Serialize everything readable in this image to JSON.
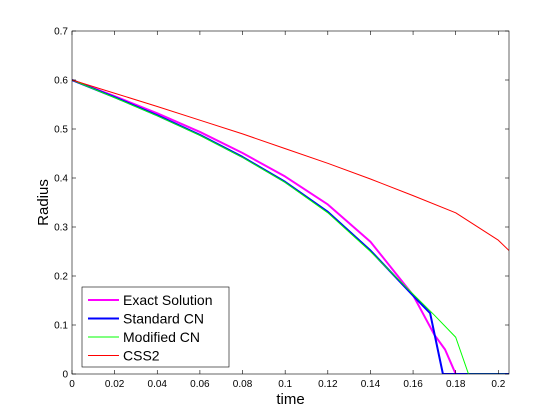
{
  "chart_data": {
    "type": "line",
    "title": "",
    "xlabel": "time",
    "ylabel": "Radius",
    "xlim": [
      0,
      0.205
    ],
    "ylim": [
      0,
      0.7
    ],
    "xticks": [
      0,
      0.02,
      0.04,
      0.06,
      0.08,
      0.1,
      0.12,
      0.14,
      0.16,
      0.18,
      0.2
    ],
    "yticks": [
      0,
      0.1,
      0.2,
      0.3,
      0.4,
      0.5,
      0.6,
      0.7
    ],
    "grid": false,
    "legend_position": "bottom-left",
    "series": [
      {
        "name": "Exact Solution",
        "color": "#ff00ff",
        "width": 2,
        "x": [
          0,
          0.02,
          0.04,
          0.06,
          0.08,
          0.1,
          0.12,
          0.14,
          0.16,
          0.17,
          0.175,
          0.178,
          0.18,
          0.205
        ],
        "y": [
          0.6,
          0.567,
          0.532,
          0.494,
          0.451,
          0.403,
          0.346,
          0.27,
          0.161,
          0.08,
          0.05,
          0.02,
          0.0,
          0.0
        ]
      },
      {
        "name": "Standard CN",
        "color": "#0000ff",
        "width": 2,
        "x": [
          0,
          0.02,
          0.04,
          0.06,
          0.08,
          0.1,
          0.12,
          0.14,
          0.16,
          0.168,
          0.174,
          0.205
        ],
        "y": [
          0.6,
          0.565,
          0.528,
          0.488,
          0.443,
          0.392,
          0.331,
          0.252,
          0.16,
          0.124,
          0.0,
          0.0
        ]
      },
      {
        "name": "Modified CN",
        "color": "#00ff00",
        "width": 1,
        "x": [
          0,
          0.02,
          0.04,
          0.06,
          0.08,
          0.1,
          0.12,
          0.14,
          0.16,
          0.17,
          0.18,
          0.186,
          0.205
        ],
        "y": [
          0.6,
          0.564,
          0.527,
          0.487,
          0.442,
          0.391,
          0.329,
          0.25,
          0.163,
          0.12,
          0.075,
          0.0,
          0.0
        ]
      },
      {
        "name": "CSS2",
        "color": "#ff0000",
        "width": 1,
        "x": [
          0,
          0.02,
          0.04,
          0.06,
          0.08,
          0.1,
          0.12,
          0.14,
          0.16,
          0.18,
          0.2,
          0.205
        ],
        "y": [
          0.6,
          0.573,
          0.546,
          0.518,
          0.49,
          0.46,
          0.43,
          0.398,
          0.364,
          0.329,
          0.273,
          0.252
        ]
      }
    ]
  }
}
